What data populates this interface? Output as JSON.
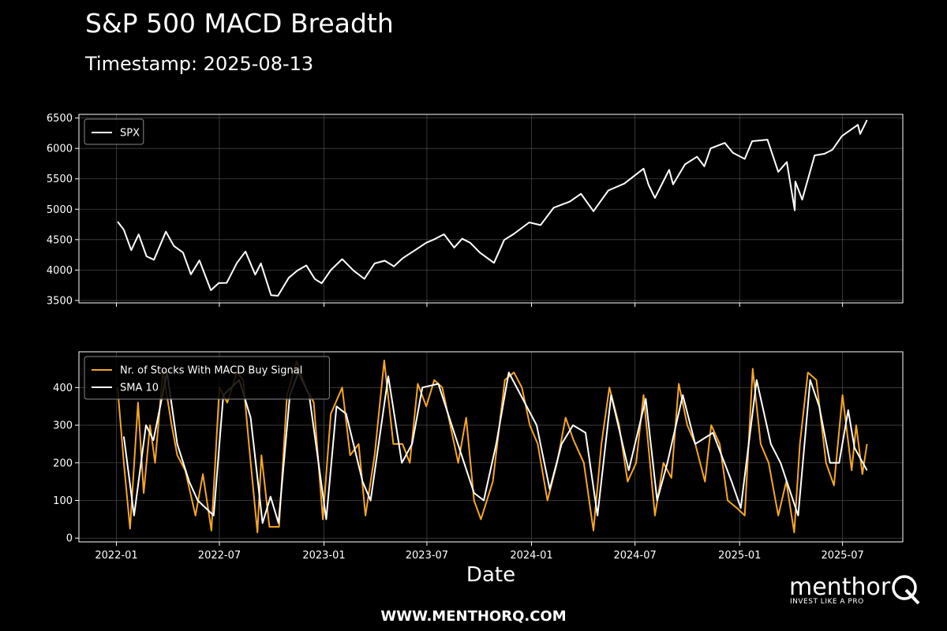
{
  "title": "S&P 500 MACD Breadth",
  "subtitle": "Timestamp: 2025-08-13",
  "footer": "WWW.MENTHORQ.COM",
  "brand": {
    "name": "menthor",
    "tagline": "INVEST LIKE A PRO",
    "logo_icon": "q-magnifier-icon"
  },
  "colors": {
    "background": "#000000",
    "spx": "#ffffff",
    "signal": "#f5a623",
    "sma": "#ffffff",
    "grid": "#555555"
  },
  "chart_data": [
    {
      "type": "line",
      "panel": "top",
      "xlabel": "",
      "ylabel": "",
      "x_ticks": [
        "2022-01",
        "2022-07",
        "2023-01",
        "2023-07",
        "2024-01",
        "2024-07",
        "2025-01",
        "2025-07"
      ],
      "xlim": [
        "2021-10-27",
        "2025-10-15"
      ],
      "ylim": [
        3460,
        6560
      ],
      "y_ticks": [
        3500,
        4000,
        4500,
        5000,
        5500,
        6000,
        6500
      ],
      "grid": true,
      "legend": "top-left",
      "series": [
        {
          "name": "SPX",
          "color": "#ffffff",
          "points": [
            [
              "2022-01-03",
              4796
            ],
            [
              "2022-01-14",
              4662
            ],
            [
              "2022-01-27",
              4327
            ],
            [
              "2022-02-09",
              4587
            ],
            [
              "2022-02-23",
              4225
            ],
            [
              "2022-03-08",
              4170
            ],
            [
              "2022-03-29",
              4631
            ],
            [
              "2022-04-12",
              4397
            ],
            [
              "2022-04-28",
              4287
            ],
            [
              "2022-05-12",
              3930
            ],
            [
              "2022-05-27",
              4158
            ],
            [
              "2022-06-16",
              3667
            ],
            [
              "2022-06-30",
              3785
            ],
            [
              "2022-07-14",
              3790
            ],
            [
              "2022-08-01",
              4119
            ],
            [
              "2022-08-16",
              4305
            ],
            [
              "2022-09-02",
              3924
            ],
            [
              "2022-09-12",
              4110
            ],
            [
              "2022-09-30",
              3586
            ],
            [
              "2022-10-12",
              3577
            ],
            [
              "2022-10-31",
              3872
            ],
            [
              "2022-11-15",
              3991
            ],
            [
              "2022-12-01",
              4076
            ],
            [
              "2022-12-16",
              3852
            ],
            [
              "2022-12-28",
              3783
            ],
            [
              "2023-01-13",
              3999
            ],
            [
              "2023-02-02",
              4180
            ],
            [
              "2023-02-22",
              3991
            ],
            [
              "2023-03-13",
              3855
            ],
            [
              "2023-03-31",
              4109
            ],
            [
              "2023-04-18",
              4154
            ],
            [
              "2023-05-04",
              4061
            ],
            [
              "2023-05-19",
              4191
            ],
            [
              "2023-06-12",
              4338
            ],
            [
              "2023-06-30",
              4450
            ],
            [
              "2023-07-14",
              4505
            ],
            [
              "2023-07-31",
              4589
            ],
            [
              "2023-08-18",
              4369
            ],
            [
              "2023-09-01",
              4515
            ],
            [
              "2023-09-15",
              4450
            ],
            [
              "2023-10-02",
              4288
            ],
            [
              "2023-10-27",
              4117
            ],
            [
              "2023-11-14",
              4495
            ],
            [
              "2023-12-01",
              4595
            ],
            [
              "2023-12-28",
              4783
            ],
            [
              "2024-01-17",
              4739
            ],
            [
              "2024-02-09",
              5026
            ],
            [
              "2024-03-08",
              5124
            ],
            [
              "2024-03-28",
              5254
            ],
            [
              "2024-04-19",
              4967
            ],
            [
              "2024-05-15",
              5308
            ],
            [
              "2024-06-12",
              5421
            ],
            [
              "2024-07-16",
              5667
            ],
            [
              "2024-07-25",
              5399
            ],
            [
              "2024-08-05",
              5186
            ],
            [
              "2024-08-30",
              5648
            ],
            [
              "2024-09-06",
              5408
            ],
            [
              "2024-09-27",
              5738
            ],
            [
              "2024-10-18",
              5864
            ],
            [
              "2024-10-31",
              5705
            ],
            [
              "2024-11-11",
              6001
            ],
            [
              "2024-12-06",
              6090
            ],
            [
              "2024-12-20",
              5930
            ],
            [
              "2025-01-10",
              5827
            ],
            [
              "2025-01-23",
              6119
            ],
            [
              "2025-02-19",
              6144
            ],
            [
              "2025-03-10",
              5614
            ],
            [
              "2025-03-25",
              5776
            ],
            [
              "2025-04-08",
              4982
            ],
            [
              "2025-04-09",
              5456
            ],
            [
              "2025-04-21",
              5158
            ],
            [
              "2025-05-13",
              5886
            ],
            [
              "2025-05-30",
              5911
            ],
            [
              "2025-06-13",
              5977
            ],
            [
              "2025-06-30",
              6205
            ],
            [
              "2025-07-28",
              6389
            ],
            [
              "2025-08-01",
              6238
            ],
            [
              "2025-08-13",
              6466
            ]
          ]
        }
      ]
    },
    {
      "type": "line",
      "panel": "bottom",
      "xlabel": "Date",
      "ylabel": "",
      "x_ticks": [
        "2022-01",
        "2022-07",
        "2023-01",
        "2023-07",
        "2024-01",
        "2024-07",
        "2025-01",
        "2025-07"
      ],
      "xlim": [
        "2021-10-27",
        "2025-10-15"
      ],
      "ylim": [
        -10,
        495
      ],
      "y_ticks": [
        0,
        100,
        200,
        300,
        400
      ],
      "grid": true,
      "legend": "top-left",
      "series": [
        {
          "name": "Nr. of Stocks With MACD Buy Signal",
          "color": "#f5a623",
          "points": [
            [
              "2022-01-03",
              400
            ],
            [
              "2022-01-14",
              200
            ],
            [
              "2022-01-25",
              25
            ],
            [
              "2022-02-08",
              360
            ],
            [
              "2022-02-18",
              120
            ],
            [
              "2022-03-01",
              300
            ],
            [
              "2022-03-10",
              200
            ],
            [
              "2022-03-24",
              445
            ],
            [
              "2022-04-07",
              310
            ],
            [
              "2022-04-18",
              220
            ],
            [
              "2022-05-02",
              180
            ],
            [
              "2022-05-20",
              60
            ],
            [
              "2022-06-02",
              170
            ],
            [
              "2022-06-17",
              20
            ],
            [
              "2022-07-01",
              400
            ],
            [
              "2022-07-15",
              360
            ],
            [
              "2022-08-01",
              440
            ],
            [
              "2022-08-12",
              420
            ],
            [
              "2022-08-22",
              250
            ],
            [
              "2022-09-06",
              15
            ],
            [
              "2022-09-13",
              220
            ],
            [
              "2022-09-27",
              30
            ],
            [
              "2022-10-14",
              30
            ],
            [
              "2022-10-28",
              380
            ],
            [
              "2022-11-14",
              470
            ],
            [
              "2022-11-30",
              400
            ],
            [
              "2022-12-14",
              360
            ],
            [
              "2022-12-30",
              50
            ],
            [
              "2023-01-13",
              330
            ],
            [
              "2023-02-02",
              400
            ],
            [
              "2023-02-16",
              220
            ],
            [
              "2023-03-03",
              250
            ],
            [
              "2023-03-15",
              60
            ],
            [
              "2023-03-31",
              220
            ],
            [
              "2023-04-17",
              472
            ],
            [
              "2023-05-03",
              250
            ],
            [
              "2023-05-19",
              250
            ],
            [
              "2023-06-01",
              200
            ],
            [
              "2023-06-15",
              410
            ],
            [
              "2023-06-30",
              350
            ],
            [
              "2023-07-14",
              420
            ],
            [
              "2023-07-28",
              400
            ],
            [
              "2023-08-14",
              280
            ],
            [
              "2023-08-25",
              200
            ],
            [
              "2023-09-08",
              320
            ],
            [
              "2023-09-22",
              100
            ],
            [
              "2023-10-04",
              50
            ],
            [
              "2023-10-25",
              150
            ],
            [
              "2023-11-15",
              420
            ],
            [
              "2023-12-01",
              440
            ],
            [
              "2023-12-15",
              400
            ],
            [
              "2023-12-29",
              300
            ],
            [
              "2024-01-12",
              250
            ],
            [
              "2024-01-29",
              100
            ],
            [
              "2024-02-15",
              200
            ],
            [
              "2024-03-01",
              320
            ],
            [
              "2024-03-15",
              260
            ],
            [
              "2024-04-02",
              200
            ],
            [
              "2024-04-19",
              20
            ],
            [
              "2024-05-03",
              250
            ],
            [
              "2024-05-17",
              400
            ],
            [
              "2024-06-03",
              300
            ],
            [
              "2024-06-18",
              150
            ],
            [
              "2024-07-03",
              200
            ],
            [
              "2024-07-16",
              380
            ],
            [
              "2024-08-05",
              60
            ],
            [
              "2024-08-20",
              200
            ],
            [
              "2024-09-03",
              160
            ],
            [
              "2024-09-16",
              410
            ],
            [
              "2024-10-01",
              300
            ],
            [
              "2024-10-15",
              250
            ],
            [
              "2024-11-01",
              150
            ],
            [
              "2024-11-12",
              300
            ],
            [
              "2024-11-27",
              250
            ],
            [
              "2024-12-11",
              100
            ],
            [
              "2024-12-27",
              80
            ],
            [
              "2025-01-10",
              60
            ],
            [
              "2025-01-24",
              450
            ],
            [
              "2025-02-07",
              250
            ],
            [
              "2025-02-21",
              200
            ],
            [
              "2025-03-10",
              60
            ],
            [
              "2025-03-24",
              150
            ],
            [
              "2025-04-07",
              15
            ],
            [
              "2025-04-17",
              250
            ],
            [
              "2025-05-01",
              440
            ],
            [
              "2025-05-16",
              420
            ],
            [
              "2025-06-02",
              200
            ],
            [
              "2025-06-16",
              140
            ],
            [
              "2025-07-01",
              380
            ],
            [
              "2025-07-17",
              180
            ],
            [
              "2025-07-25",
              300
            ],
            [
              "2025-08-05",
              170
            ],
            [
              "2025-08-13",
              250
            ]
          ]
        },
        {
          "name": "SMA 10",
          "color": "#ffffff",
          "points": [
            [
              "2022-01-14",
              270
            ],
            [
              "2022-02-01",
              60
            ],
            [
              "2022-02-22",
              300
            ],
            [
              "2022-03-07",
              260
            ],
            [
              "2022-03-31",
              440
            ],
            [
              "2022-04-18",
              250
            ],
            [
              "2022-05-09",
              150
            ],
            [
              "2022-05-24",
              100
            ],
            [
              "2022-06-21",
              60
            ],
            [
              "2022-07-08",
              380
            ],
            [
              "2022-08-05",
              420
            ],
            [
              "2022-08-25",
              320
            ],
            [
              "2022-09-15",
              40
            ],
            [
              "2022-09-29",
              110
            ],
            [
              "2022-10-13",
              40
            ],
            [
              "2022-11-02",
              380
            ],
            [
              "2022-11-17",
              440
            ],
            [
              "2022-12-06",
              380
            ],
            [
              "2023-01-05",
              50
            ],
            [
              "2023-01-23",
              350
            ],
            [
              "2023-02-09",
              330
            ],
            [
              "2023-03-10",
              150
            ],
            [
              "2023-03-24",
              100
            ],
            [
              "2023-04-24",
              430
            ],
            [
              "2023-05-18",
              200
            ],
            [
              "2023-06-05",
              250
            ],
            [
              "2023-06-23",
              400
            ],
            [
              "2023-07-21",
              410
            ],
            [
              "2023-08-18",
              280
            ],
            [
              "2023-09-22",
              120
            ],
            [
              "2023-10-09",
              100
            ],
            [
              "2023-10-31",
              250
            ],
            [
              "2023-11-22",
              440
            ],
            [
              "2024-01-10",
              300
            ],
            [
              "2024-02-02",
              130
            ],
            [
              "2024-02-23",
              250
            ],
            [
              "2024-03-14",
              300
            ],
            [
              "2024-04-05",
              280
            ],
            [
              "2024-04-26",
              60
            ],
            [
              "2024-05-20",
              380
            ],
            [
              "2024-06-20",
              180
            ],
            [
              "2024-07-20",
              370
            ],
            [
              "2024-08-09",
              100
            ],
            [
              "2024-08-27",
              200
            ],
            [
              "2024-09-23",
              380
            ],
            [
              "2024-10-15",
              250
            ],
            [
              "2024-11-15",
              280
            ],
            [
              "2024-12-18",
              150
            ],
            [
              "2025-01-03",
              80
            ],
            [
              "2025-01-31",
              420
            ],
            [
              "2025-02-25",
              250
            ],
            [
              "2025-03-14",
              200
            ],
            [
              "2025-04-14",
              60
            ],
            [
              "2025-05-05",
              420
            ],
            [
              "2025-05-21",
              350
            ],
            [
              "2025-06-09",
              200
            ],
            [
              "2025-06-25",
              200
            ],
            [
              "2025-07-11",
              340
            ],
            [
              "2025-07-22",
              240
            ],
            [
              "2025-08-13",
              180
            ]
          ]
        }
      ]
    }
  ]
}
